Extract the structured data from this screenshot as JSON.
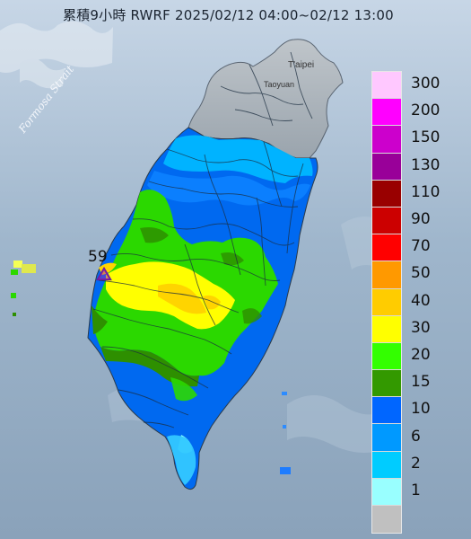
{
  "title": "累積9小時 RWRF 2025/02/12 04:00~02/12 13:00",
  "labels": {
    "strait": "Formosa Strait",
    "taipei": "T'aipei",
    "taoyuan": "Taoyuan"
  },
  "station_marker": {
    "value": "59"
  },
  "legend": {
    "unit_items": [
      {
        "label": "300",
        "color": "#ffc8ff"
      },
      {
        "label": "200",
        "color": "#ff00ff"
      },
      {
        "label": "150",
        "color": "#cc00cc"
      },
      {
        "label": "130",
        "color": "#990099"
      },
      {
        "label": "110",
        "color": "#990000"
      },
      {
        "label": "90",
        "color": "#cc0000"
      },
      {
        "label": "70",
        "color": "#ff0000"
      },
      {
        "label": "50",
        "color": "#ff9900"
      },
      {
        "label": "40",
        "color": "#ffcc00"
      },
      {
        "label": "30",
        "color": "#ffff00"
      },
      {
        "label": "20",
        "color": "#33ff00"
      },
      {
        "label": "15",
        "color": "#339900"
      },
      {
        "label": "10",
        "color": "#0066ff"
      },
      {
        "label": "6",
        "color": "#0099ff"
      },
      {
        "label": "2",
        "color": "#00ccff"
      },
      {
        "label": "1",
        "color": "#99ffff"
      },
      {
        "label": "",
        "color": "#c0c0c0"
      }
    ]
  }
}
